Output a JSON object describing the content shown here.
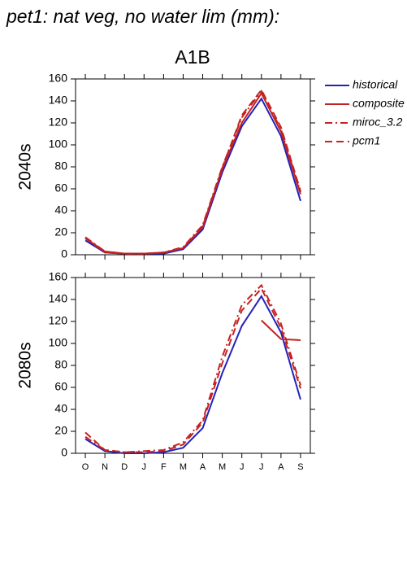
{
  "title": "pet1: nat veg, no water lim (mm):",
  "subtitle": "A1B",
  "chart_data": [
    {
      "type": "line",
      "y_label": "2040s",
      "ylim": [
        0,
        160
      ],
      "yticks": [
        0,
        20,
        40,
        60,
        80,
        100,
        120,
        140,
        160
      ],
      "legend": "right",
      "series": [
        {
          "name": "historical",
          "color": "#2222bb",
          "dash": "solid",
          "values": [
            13,
            2,
            1,
            1,
            1,
            5,
            23,
            75,
            117,
            142,
            108,
            49
          ]
        },
        {
          "name": "composite",
          "color": "#c42222",
          "dash": "solid",
          "values": [
            15,
            3,
            1,
            1,
            2,
            6,
            25,
            78,
            120,
            147,
            112,
            55
          ]
        },
        {
          "name": "miroc_3.2",
          "color": "#c42222",
          "dash": "dashdot",
          "values": [
            16,
            3,
            1,
            1,
            2,
            7,
            27,
            80,
            125,
            149,
            114,
            57
          ]
        },
        {
          "name": "pcm1",
          "color": "#c42222",
          "dash": "dashed",
          "values": [
            15,
            2,
            1,
            1,
            2,
            6,
            26,
            79,
            127,
            150,
            116,
            58
          ]
        }
      ]
    },
    {
      "type": "line",
      "y_label": "2080s",
      "ylim": [
        0,
        160
      ],
      "yticks": [
        0,
        20,
        40,
        60,
        80,
        100,
        120,
        140,
        160
      ],
      "categories": [
        "O",
        "N",
        "D",
        "J",
        "F",
        "M",
        "A",
        "M",
        "J",
        "J",
        "A",
        "S"
      ],
      "series": [
        {
          "color": "#2222bb",
          "dash": "solid",
          "values": [
            13,
            2,
            0,
            0,
            1,
            5,
            23,
            73,
            116,
            143,
            110,
            49
          ]
        },
        {
          "color": "#c42222",
          "dash": "solid",
          "values": [
            null,
            null,
            null,
            null,
            null,
            null,
            null,
            null,
            null,
            121,
            104,
            103
          ]
        },
        {
          "color": "#c42222",
          "dash": "dashdot",
          "values": [
            15,
            3,
            1,
            2,
            3,
            10,
            30,
            88,
            135,
            153,
            118,
            62
          ]
        },
        {
          "color": "#c42222",
          "dash": "dashed",
          "values": [
            19,
            3,
            1,
            1,
            2,
            8,
            28,
            82,
            130,
            150,
            114,
            59
          ]
        }
      ]
    }
  ]
}
